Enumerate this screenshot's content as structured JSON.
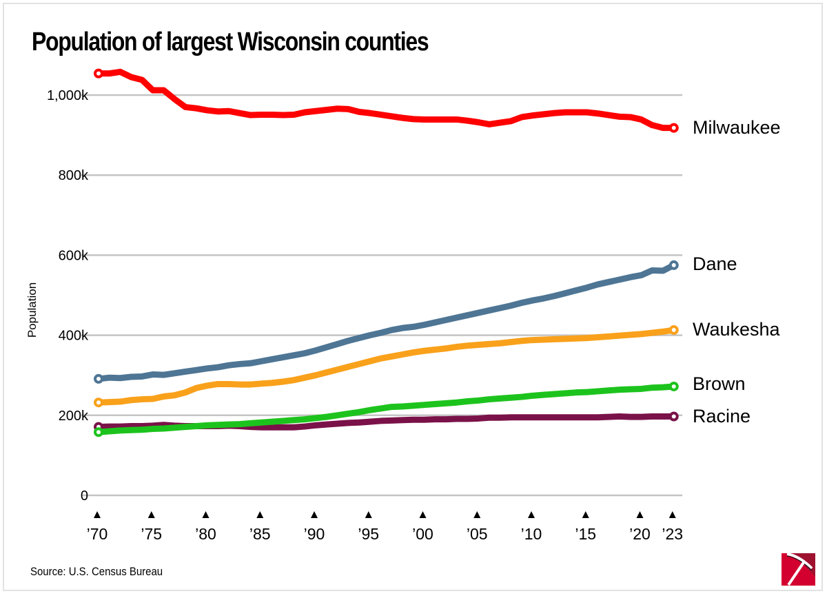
{
  "chart_data": {
    "type": "line",
    "title": "Population of largest Wisconsin counties",
    "ylabel": "Population",
    "xlabel": "",
    "source": "Source: U.S. Census Bureau",
    "ylim": [
      0,
      1050000
    ],
    "xlim": [
      1970,
      2023
    ],
    "grid": true,
    "legend": "direct labels at line ends (right)",
    "y_ticks": [
      {
        "value": 0,
        "label": "0"
      },
      {
        "value": 200000,
        "label": "200k"
      },
      {
        "value": 400000,
        "label": "400k"
      },
      {
        "value": 600000,
        "label": "600k"
      },
      {
        "value": 800000,
        "label": "800k"
      },
      {
        "value": 1000000,
        "label": "1,000k"
      }
    ],
    "x_ticks": [
      {
        "value": 1970,
        "label": "’70"
      },
      {
        "value": 1975,
        "label": "’75"
      },
      {
        "value": 1980,
        "label": "’80"
      },
      {
        "value": 1985,
        "label": "’85"
      },
      {
        "value": 1990,
        "label": "’90"
      },
      {
        "value": 1995,
        "label": "’95"
      },
      {
        "value": 2000,
        "label": "’00"
      },
      {
        "value": 2005,
        "label": "’05"
      },
      {
        "value": 2010,
        "label": "’10"
      },
      {
        "value": 2015,
        "label": "’15"
      },
      {
        "value": 2020,
        "label": "’20"
      },
      {
        "value": 2023,
        "label": "’23"
      }
    ],
    "x": [
      1970,
      1971,
      1972,
      1973,
      1974,
      1975,
      1976,
      1977,
      1978,
      1979,
      1980,
      1981,
      1982,
      1983,
      1984,
      1985,
      1986,
      1987,
      1988,
      1989,
      1990,
      1991,
      1992,
      1993,
      1994,
      1995,
      1996,
      1997,
      1998,
      1999,
      2000,
      2001,
      2002,
      2003,
      2004,
      2005,
      2006,
      2007,
      2008,
      2009,
      2010,
      2011,
      2012,
      2013,
      2014,
      2015,
      2016,
      2017,
      2018,
      2019,
      2020,
      2021,
      2022,
      2023
    ],
    "units": "thousands",
    "series": [
      {
        "name": "Milwaukee",
        "color": "#ff0000",
        "values": [
          1054,
          1054,
          1058,
          1045,
          1038,
          1012,
          1012,
          990,
          970,
          967,
          962,
          959,
          960,
          955,
          950,
          951,
          951,
          950,
          951,
          957,
          960,
          963,
          966,
          965,
          958,
          955,
          951,
          947,
          943,
          940,
          939,
          939,
          939,
          939,
          936,
          932,
          927,
          931,
          935,
          945,
          949,
          952,
          955,
          957,
          957,
          957,
          954,
          950,
          946,
          945,
          939,
          925,
          918,
          918
        ]
      },
      {
        "name": "Dane",
        "color": "#4e7594",
        "values": [
          291,
          294,
          293,
          296,
          297,
          302,
          301,
          305,
          309,
          313,
          317,
          320,
          325,
          328,
          330,
          335,
          340,
          345,
          350,
          355,
          362,
          370,
          378,
          386,
          393,
          400,
          406,
          413,
          418,
          421,
          426,
          432,
          438,
          444,
          450,
          456,
          462,
          468,
          474,
          481,
          487,
          492,
          498,
          505,
          512,
          519,
          527,
          533,
          539,
          545,
          550,
          562,
          561,
          575
        ]
      },
      {
        "name": "Waukesha",
        "color": "#f9a11b",
        "values": [
          232,
          233,
          234,
          238,
          240,
          241,
          247,
          250,
          257,
          268,
          274,
          278,
          278,
          277,
          277,
          279,
          281,
          284,
          288,
          294,
          300,
          307,
          314,
          321,
          328,
          335,
          342,
          347,
          352,
          357,
          361,
          364,
          367,
          371,
          374,
          376,
          378,
          380,
          383,
          386,
          388,
          389,
          390,
          391,
          392,
          393,
          395,
          397,
          399,
          401,
          403,
          406,
          409,
          413
        ]
      },
      {
        "name": "Brown",
        "color": "#1dc31d",
        "values": [
          158,
          160,
          162,
          163,
          164,
          166,
          167,
          169,
          171,
          173,
          175,
          176,
          177,
          178,
          180,
          182,
          184,
          186,
          188,
          190,
          193,
          196,
          200,
          204,
          208,
          213,
          217,
          221,
          222,
          224,
          226,
          228,
          230,
          232,
          235,
          237,
          240,
          242,
          244,
          246,
          249,
          251,
          253,
          255,
          257,
          258,
          260,
          262,
          264,
          265,
          266,
          269,
          270,
          272
        ]
      },
      {
        "name": "Racine",
        "color": "#7a1249",
        "values": [
          171,
          172,
          172,
          173,
          173,
          174,
          176,
          174,
          173,
          173,
          173,
          173,
          174,
          173,
          171,
          170,
          170,
          170,
          170,
          172,
          175,
          177,
          179,
          181,
          182,
          184,
          186,
          187,
          188,
          189,
          189,
          190,
          190,
          191,
          191,
          192,
          194,
          194,
          195,
          195,
          195,
          195,
          195,
          195,
          195,
          195,
          195,
          196,
          197,
          196,
          196,
          197,
          197,
          197
        ]
      }
    ]
  }
}
